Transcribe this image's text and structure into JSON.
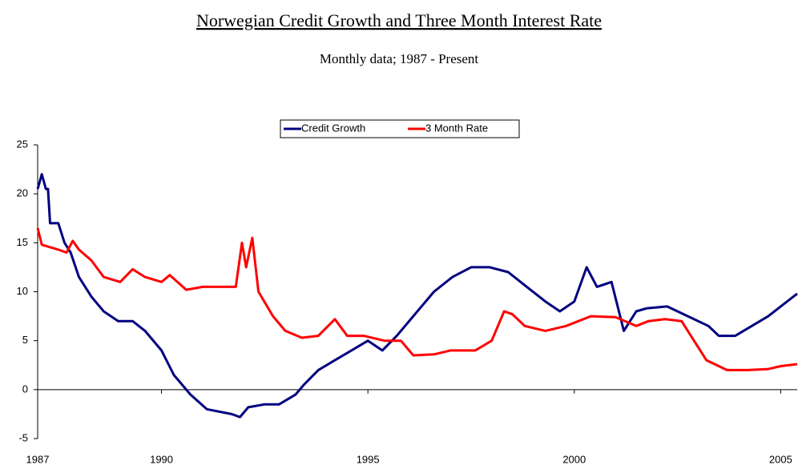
{
  "chart_data": {
    "type": "line",
    "title": "Norwegian Credit Growth and Three Month Interest Rate",
    "subtitle": "Monthly data; 1987 - Present",
    "legend": "top",
    "xlim": [
      1987,
      2005.4
    ],
    "xticks": [
      1987,
      1990,
      1995,
      2000,
      2005
    ],
    "ylim": [
      -5,
      25
    ],
    "yticks": [
      -5,
      0,
      5,
      10,
      15,
      20,
      25
    ],
    "series": [
      {
        "name": "Credit Growth",
        "color": "#000080",
        "x": [
          1987.0,
          1987.1,
          1987.2,
          1987.25,
          1987.3,
          1987.5,
          1987.65,
          1987.8,
          1988.0,
          1988.3,
          1988.6,
          1988.95,
          1989.3,
          1989.6,
          1990.0,
          1990.3,
          1990.7,
          1991.1,
          1991.7,
          1991.9,
          1992.1,
          1992.5,
          1992.85,
          1993.25,
          1993.45,
          1993.8,
          1994.2,
          1994.6,
          1995.0,
          1995.35,
          1995.7,
          1996.1,
          1996.6,
          1997.05,
          1997.5,
          1997.95,
          1998.4,
          1998.85,
          1999.3,
          1999.65,
          2000.0,
          2000.3,
          2000.55,
          2000.9,
          2001.2,
          2001.5,
          2001.75,
          2002.25,
          2002.75,
          2003.25,
          2003.5,
          2003.9,
          2004.3,
          2004.7,
          2005.0,
          2005.4
        ],
        "values": [
          20.5,
          22,
          20.5,
          20.5,
          17,
          17,
          15,
          14,
          11.5,
          9.5,
          8,
          7,
          7,
          6,
          4,
          1.5,
          -0.5,
          -2,
          -2.5,
          -2.8,
          -1.8,
          -1.5,
          -1.5,
          -0.5,
          0.5,
          2,
          3,
          4,
          5,
          4,
          5.5,
          7.5,
          10,
          11.5,
          12.5,
          12.5,
          12,
          10.5,
          9,
          8,
          9,
          12.5,
          10.5,
          11,
          6,
          8,
          8.3,
          8.5,
          7.5,
          6.5,
          5.5,
          5.5,
          6.5,
          7.5,
          8.5,
          9.8
        ]
      },
      {
        "name": "3 Month Rate",
        "color": "#ff0000",
        "x": [
          1987.0,
          1987.1,
          1987.5,
          1987.7,
          1987.85,
          1988.0,
          1988.3,
          1988.6,
          1989.0,
          1989.3,
          1989.6,
          1990.0,
          1990.2,
          1990.6,
          1991.0,
          1991.4,
          1991.8,
          1991.95,
          1992.05,
          1992.2,
          1992.35,
          1992.7,
          1993.0,
          1993.4,
          1993.8,
          1994.2,
          1994.5,
          1994.9,
          1995.4,
          1995.8,
          1996.1,
          1996.6,
          1997.0,
          1997.6,
          1998.0,
          1998.3,
          1998.5,
          1998.8,
          1999.3,
          1999.8,
          2000.4,
          2001.0,
          2001.5,
          2001.8,
          2002.2,
          2002.6,
          2002.9,
          2003.2,
          2003.7,
          2004.2,
          2004.7,
          2005.0,
          2005.4
        ],
        "values": [
          16.5,
          14.8,
          14.3,
          14,
          15.2,
          14.3,
          13.2,
          11.5,
          11,
          12.3,
          11.5,
          11,
          11.7,
          10.2,
          10.5,
          10.5,
          10.5,
          15,
          12.5,
          15.5,
          10,
          7.5,
          6,
          5.3,
          5.5,
          7.2,
          5.5,
          5.5,
          5,
          5,
          3.5,
          3.6,
          4,
          4,
          5,
          8,
          7.7,
          6.5,
          6,
          6.5,
          7.5,
          7.4,
          6.5,
          7,
          7.2,
          7,
          5,
          3,
          2,
          2,
          2.1,
          2.4,
          2.6
        ]
      }
    ]
  }
}
